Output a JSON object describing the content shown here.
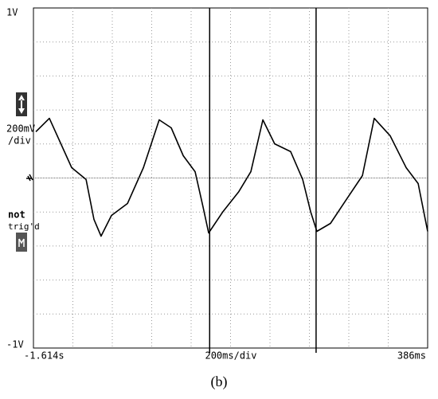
{
  "chart_data": {
    "type": "line",
    "x": [
      -1.602,
      -1.533,
      -1.42,
      -1.347,
      -1.307,
      -1.271,
      -1.218,
      -1.137,
      -1.056,
      -0.976,
      -0.915,
      -0.854,
      -0.794,
      -0.753,
      -0.725,
      -0.652,
      -0.572,
      -0.511,
      -0.45,
      -0.39,
      -0.309,
      -0.248,
      -0.208,
      -0.176,
      -0.107,
      -0.026,
      0.055,
      0.115,
      0.196,
      0.277,
      0.338,
      0.386
    ],
    "series": [
      {
        "color": "#000000",
        "values": [
          0.272,
          0.351,
          0.061,
          -0.009,
          -0.244,
          -0.342,
          -0.22,
          -0.15,
          0.061,
          0.342,
          0.295,
          0.131,
          0.037,
          -0.173,
          -0.323,
          -0.197,
          -0.08,
          0.037,
          0.342,
          0.201,
          0.155,
          -0.009,
          -0.197,
          -0.314,
          -0.267,
          -0.126,
          0.014,
          0.351,
          0.248,
          0.061,
          -0.033,
          -0.314
        ]
      }
    ],
    "xlim": [
      -1.614,
      0.386
    ],
    "ylim": [
      -1,
      1
    ],
    "xticks": [
      {
        "value": -1.614,
        "label": "-1.614s"
      },
      {
        "value": 0.386,
        "label": "386ms"
      }
    ],
    "yticks": [
      {
        "value": 1,
        "label": "1V"
      },
      {
        "value": -1,
        "label": "-1V"
      }
    ],
    "xgrid": [
      -1.414,
      -1.214,
      -1.014,
      -0.814,
      -0.614,
      -0.414,
      -0.214,
      -0.014,
      0.186
    ],
    "ygrid": [
      -0.8,
      -0.6,
      -0.4,
      -0.2,
      0.2,
      0.4,
      0.6,
      0.8
    ],
    "zero_line": 0,
    "cursors": [
      -0.72,
      -0.18
    ],
    "xlabel": "200ms/div",
    "ylabel": [
      "200mV",
      "/div"
    ],
    "trigger_status": [
      "not",
      "trig'd"
    ],
    "caption": "(b)"
  }
}
